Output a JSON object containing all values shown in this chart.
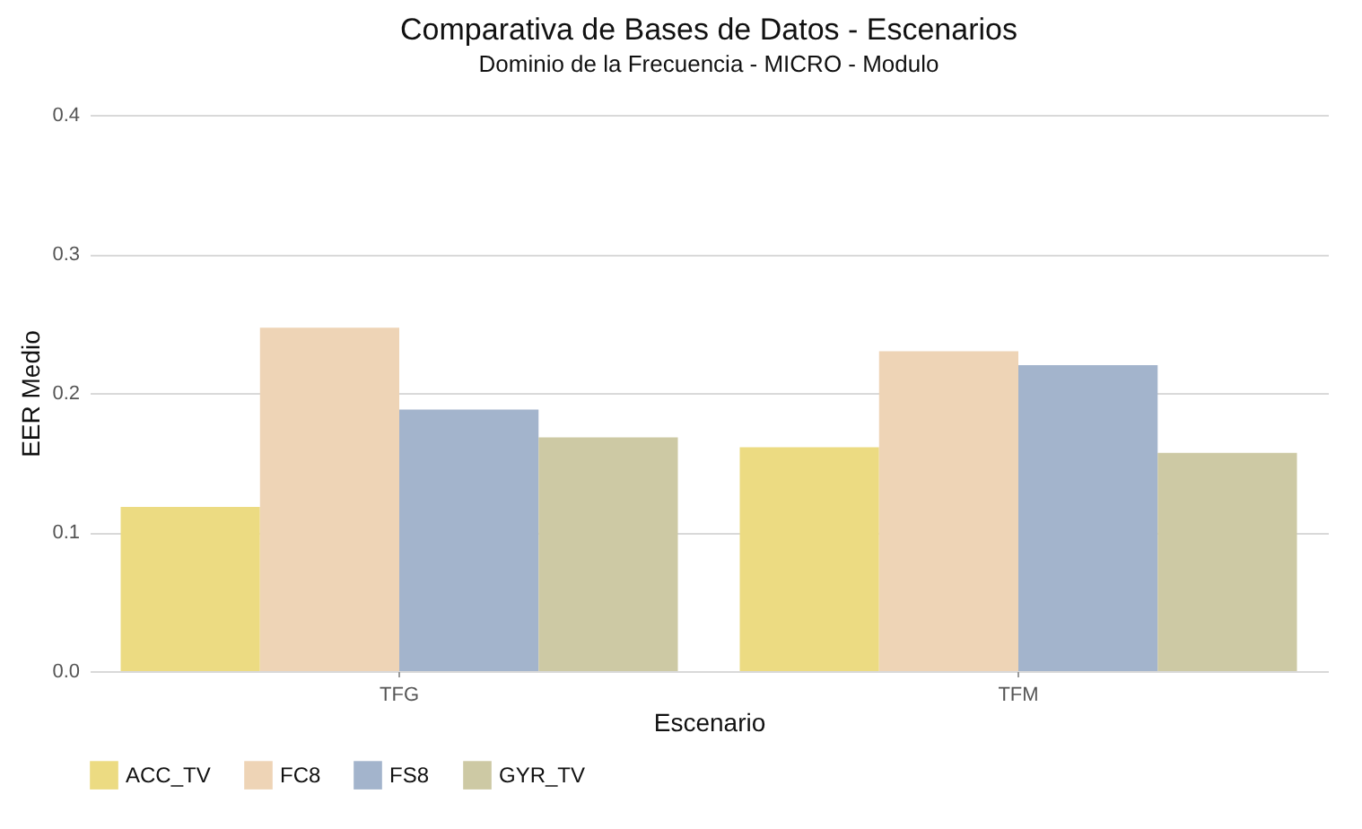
{
  "chart_data": {
    "type": "bar",
    "title": "Comparativa de Bases de Datos - Escenarios",
    "subtitle": "Dominio de la Frecuencia - MICRO - Modulo",
    "xlabel": "Escenario",
    "ylabel": "EER Medio",
    "categories": [
      "TFG",
      "TFM"
    ],
    "series": [
      {
        "name": "ACC_TV",
        "color": "#ecdb82",
        "values": [
          0.118,
          0.161
        ]
      },
      {
        "name": "FC8",
        "color": "#eed4b6",
        "values": [
          0.247,
          0.23
        ]
      },
      {
        "name": "FS8",
        "color": "#a3b4cc",
        "values": [
          0.188,
          0.22
        ]
      },
      {
        "name": "GYR_TV",
        "color": "#cdc9a4",
        "values": [
          0.168,
          0.157
        ]
      }
    ],
    "ylim": [
      0,
      0.4
    ],
    "yticks": [
      {
        "value": 0,
        "label": "0.0"
      },
      {
        "value": 0.1,
        "label": "0.1"
      },
      {
        "value": 0.2,
        "label": "0.2"
      },
      {
        "value": 0.3,
        "label": "0.3"
      },
      {
        "value": 0.4,
        "label": "0.4"
      }
    ],
    "grid": "y",
    "legend": "bottom"
  }
}
